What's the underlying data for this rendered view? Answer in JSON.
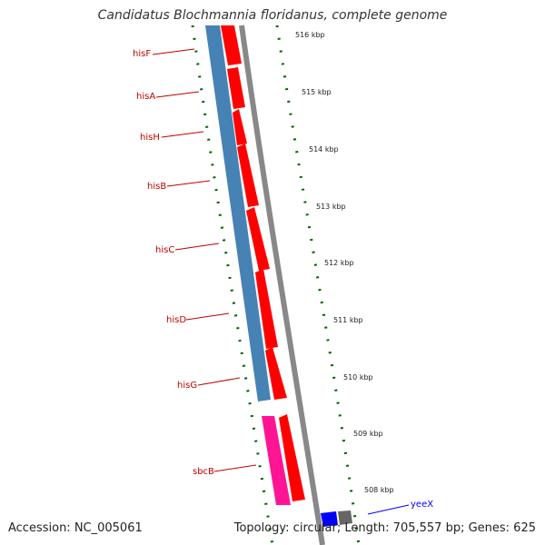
{
  "title": "Candidatus Blochmannia floridanus, complete genome",
  "footer": {
    "accession": "Accession: NC_005061",
    "summary": "Topology: circular; Length: 705,557 bp; Genes: 625"
  },
  "tick_labels": [
    "516 kbp",
    "515 kbp",
    "514 kbp",
    "513 kbp",
    "512 kbp",
    "511 kbp",
    "510 kbp",
    "509 kbp",
    "508 kbp"
  ],
  "genes": [
    {
      "name": "hisF",
      "color": "#c00000"
    },
    {
      "name": "hisA",
      "color": "#c00000"
    },
    {
      "name": "hisH",
      "color": "#c00000"
    },
    {
      "name": "hisB",
      "color": "#c00000"
    },
    {
      "name": "hisC",
      "color": "#c00000"
    },
    {
      "name": "hisD",
      "color": "#c00000"
    },
    {
      "name": "hisG",
      "color": "#c00000"
    },
    {
      "name": "sbcB",
      "color": "#c00000"
    },
    {
      "name": "yeeX",
      "color": "#0000cc"
    }
  ],
  "colors": {
    "cds_forward": "#ff0000",
    "cog_blue": "#4682b4",
    "cog_pink": "#ff1493",
    "backbone": "#888888",
    "ticks": "#006400",
    "gene_yeeX": "#0000ff"
  }
}
